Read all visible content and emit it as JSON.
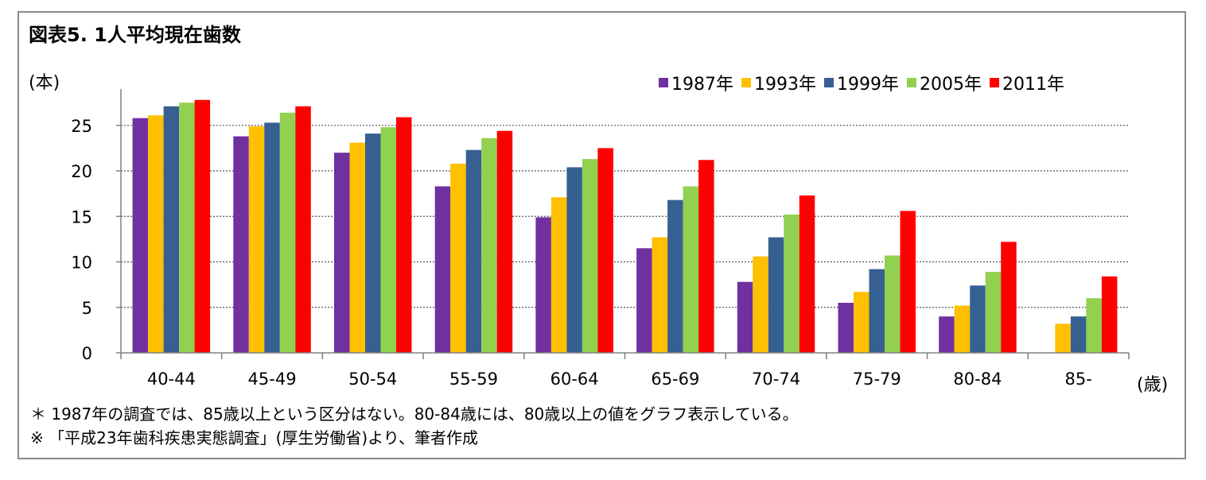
{
  "title": "図表5. 1人平均現在歯数",
  "y_unit": "(本)",
  "x_unit": "(歳)",
  "notes": [
    "＊ 1987年の調査では、85歳以上という区分はない。80-84歳には、80歳以上の値をグラフ表示している。",
    "※ 「平成23年歯科疾患実態調査」(厚生労働省)より、筆者作成"
  ],
  "chart_data": {
    "type": "bar",
    "categories": [
      "40-44",
      "45-49",
      "50-54",
      "55-59",
      "60-64",
      "65-69",
      "70-74",
      "75-79",
      "80-84",
      "85-"
    ],
    "series": [
      {
        "name": "1987年",
        "color": "#7030A0",
        "values": [
          25.8,
          23.8,
          22.0,
          18.3,
          14.9,
          11.5,
          7.8,
          5.5,
          4.0,
          null
        ]
      },
      {
        "name": "1993年",
        "color": "#FFC000",
        "values": [
          26.1,
          24.9,
          23.1,
          20.8,
          17.1,
          12.7,
          10.6,
          6.7,
          5.2,
          3.2
        ]
      },
      {
        "name": "1999年",
        "color": "#376092",
        "values": [
          27.1,
          25.3,
          24.1,
          22.3,
          20.4,
          16.8,
          12.7,
          9.2,
          7.4,
          4.0
        ]
      },
      {
        "name": "2005年",
        "color": "#92D050",
        "values": [
          27.5,
          26.4,
          24.8,
          23.6,
          21.3,
          18.3,
          15.2,
          10.7,
          8.9,
          6.0
        ]
      },
      {
        "name": "2011年",
        "color": "#FF0000",
        "values": [
          27.8,
          27.1,
          25.9,
          24.4,
          22.5,
          21.2,
          17.3,
          15.6,
          12.2,
          8.4
        ]
      }
    ],
    "yticks": [
      0,
      5,
      10,
      15,
      20,
      25
    ],
    "ylim": [
      0,
      29
    ],
    "grid": true,
    "legend_position": "top-right"
  }
}
